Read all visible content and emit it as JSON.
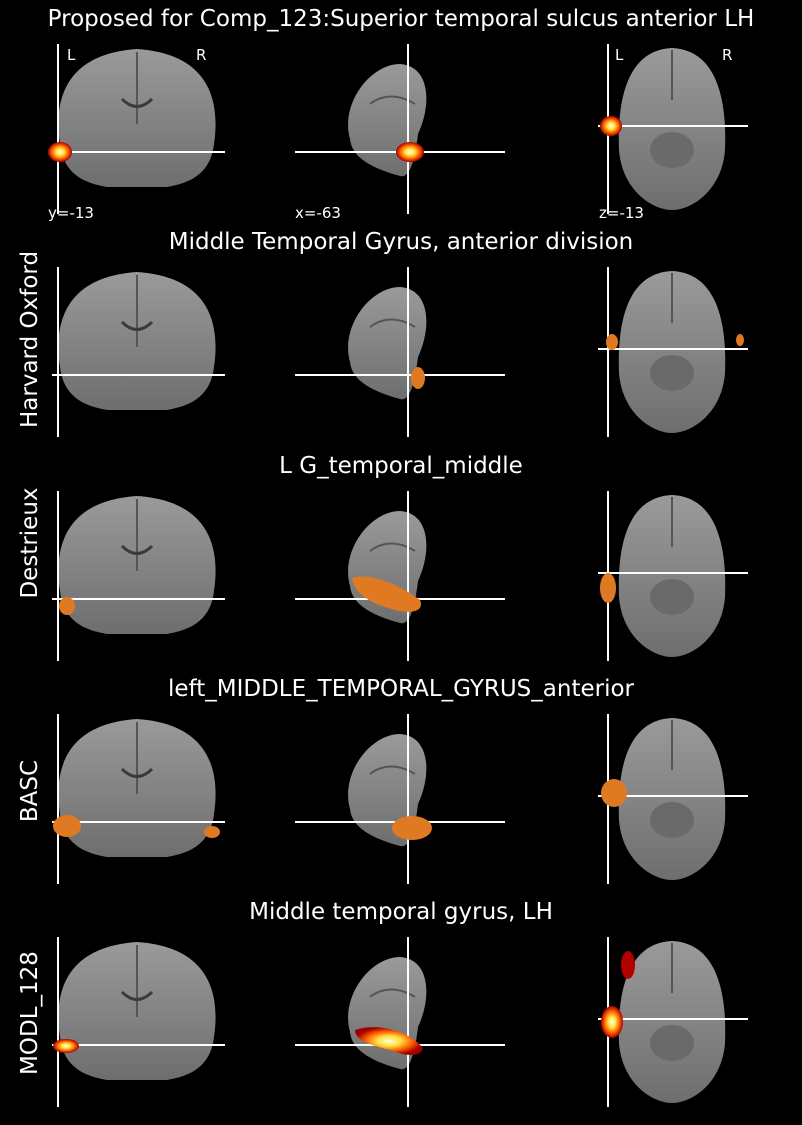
{
  "panels": [
    {
      "title": "Proposed for Comp_123:Superior temporal sulcus anterior LH",
      "row_label": ""
    },
    {
      "title": "Middle Temporal Gyrus, anterior division",
      "row_label": "Harvard Oxford"
    },
    {
      "title": "L G_temporal_middle",
      "row_label": "Destrieux"
    },
    {
      "title": "left_MIDDLE_TEMPORAL_GYRUS_anterior",
      "row_label": "BASC"
    },
    {
      "title": "Middle temporal gyrus, LH",
      "row_label": "MODL_128"
    }
  ],
  "cut_coords": {
    "coronal": "y=-13",
    "sagittal": "x=-63",
    "axial": "z=-13"
  },
  "orientation": {
    "left": "L",
    "right": "R"
  },
  "colors": {
    "background": "#000000",
    "crosshair": "#ffffff",
    "overlay_orange": "#e07a22",
    "hot_core": "#ffff80",
    "hot_edge": "#cc1100"
  }
}
